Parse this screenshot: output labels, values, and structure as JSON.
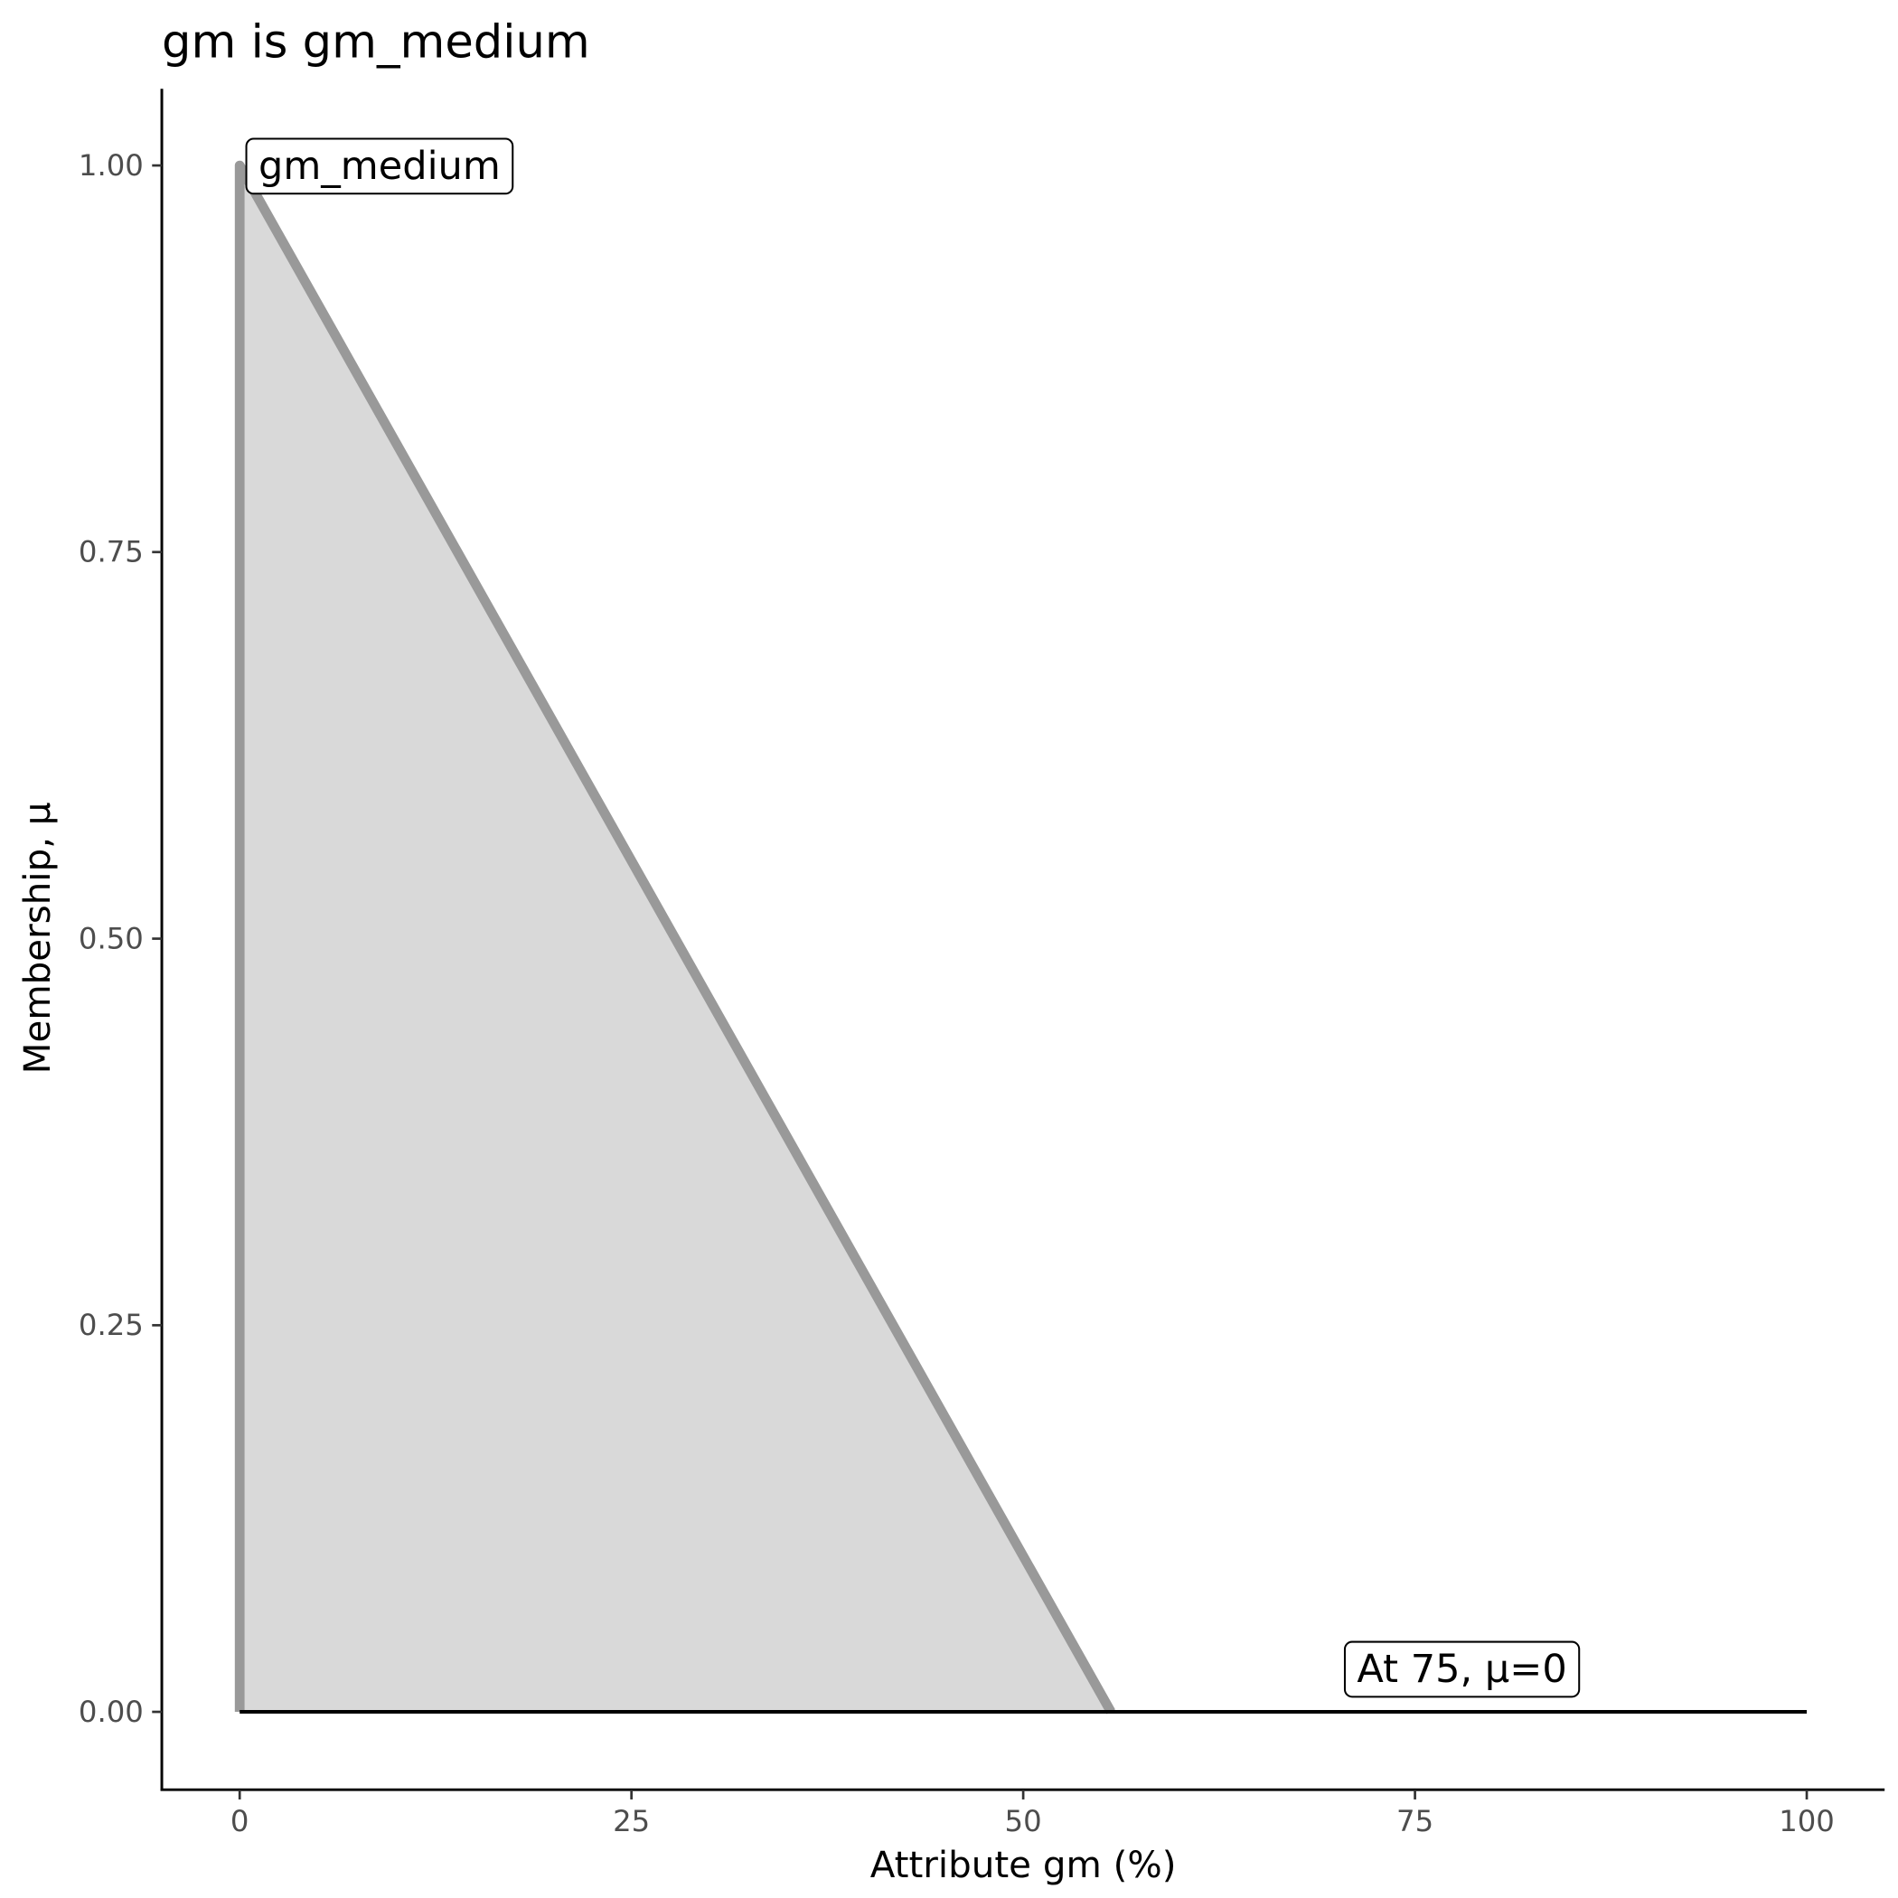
{
  "chart_data": {
    "type": "area",
    "title": "gm is gm_medium",
    "xlabel": "Attribute gm (%)",
    "ylabel": "Membership, μ",
    "xlim": [
      -5,
      105
    ],
    "ylim": [
      -0.05,
      1.05
    ],
    "x_ticks": [
      0,
      25,
      50,
      75,
      100
    ],
    "x_tick_labels": [
      "0",
      "25",
      "50",
      "75",
      "100"
    ],
    "y_ticks": [
      0,
      0.25,
      0.5,
      0.75,
      1
    ],
    "y_tick_labels": [
      "0.00",
      "0.25",
      "0.50",
      "0.75",
      "1.00"
    ],
    "grid": false,
    "series": [
      {
        "x": [
          0,
          0,
          55.6
        ],
        "y": [
          0,
          1,
          0
        ],
        "color": "#999999",
        "fill": "#d9d9d9"
      }
    ],
    "baseline": {
      "x": [
        0,
        100
      ],
      "y": [
        0,
        0
      ],
      "color": "#000000"
    },
    "annotations": [
      {
        "text": "gm_medium",
        "x": 1.2,
        "y": 1.0,
        "anchor": "start"
      },
      {
        "text": "At 75, μ=0",
        "x": 78,
        "y": 0.028,
        "anchor": "middle"
      }
    ]
  }
}
